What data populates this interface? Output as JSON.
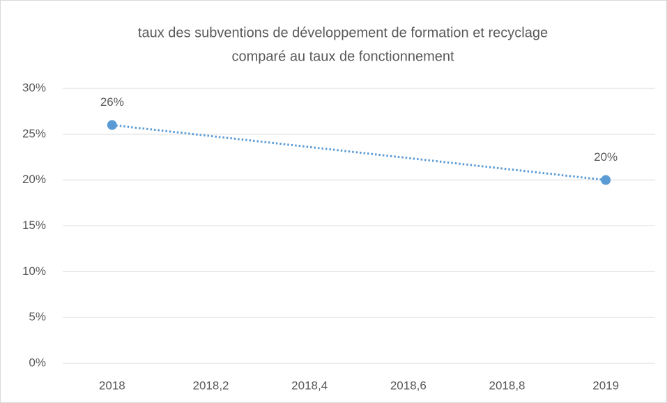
{
  "chart_data": {
    "type": "line",
    "title": [
      "taux des subventions de développement de formation et recyclage",
      "comparé au taux de fonctionnement"
    ],
    "x": [
      2018,
      2019
    ],
    "values": [
      26,
      20
    ],
    "value_labels": [
      "26%",
      "20%"
    ],
    "color": "#5b9bd5",
    "line_style": "dotted",
    "xlim": [
      2017.9,
      2019.1
    ],
    "xticks": [
      2018,
      {
        "value": 2018.2,
        "label": "2018,2"
      },
      {
        "value": 2018.4,
        "label": "2018,4"
      },
      {
        "value": 2018.6,
        "label": "2018,6"
      },
      {
        "value": 2018.8,
        "label": "2018,8"
      },
      2019
    ],
    "ylim": [
      0,
      30
    ],
    "yticks": [
      {
        "value": 0,
        "label": "0%"
      },
      {
        "value": 5,
        "label": "5%"
      },
      {
        "value": 10,
        "label": "10%"
      },
      {
        "value": 15,
        "label": "15%"
      },
      {
        "value": 20,
        "label": "20%"
      },
      {
        "value": 25,
        "label": "25%"
      },
      {
        "value": 30,
        "label": "30%"
      }
    ],
    "grid": true
  }
}
